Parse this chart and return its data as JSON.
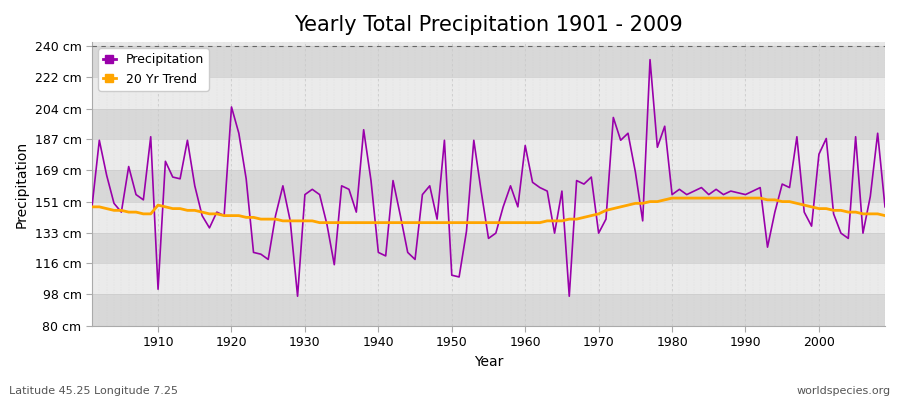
{
  "title": "Yearly Total Precipitation 1901 - 2009",
  "xlabel": "Year",
  "ylabel": "Precipitation",
  "subtitle": "Latitude 45.25 Longitude 7.25",
  "watermark": "worldspecies.org",
  "ylim": [
    80,
    242
  ],
  "yticks": [
    80,
    98,
    116,
    133,
    151,
    169,
    187,
    204,
    222,
    240
  ],
  "ytick_labels": [
    "80 cm",
    "98 cm",
    "116 cm",
    "133 cm",
    "151 cm",
    "169 cm",
    "187 cm",
    "204 cm",
    "222 cm",
    "240 cm"
  ],
  "years": [
    1901,
    1902,
    1903,
    1904,
    1905,
    1906,
    1907,
    1908,
    1909,
    1910,
    1911,
    1912,
    1913,
    1914,
    1915,
    1916,
    1917,
    1918,
    1919,
    1920,
    1921,
    1922,
    1923,
    1924,
    1925,
    1926,
    1927,
    1928,
    1929,
    1930,
    1931,
    1932,
    1933,
    1934,
    1935,
    1936,
    1937,
    1938,
    1939,
    1940,
    1941,
    1942,
    1943,
    1944,
    1945,
    1946,
    1947,
    1948,
    1949,
    1950,
    1951,
    1952,
    1953,
    1954,
    1955,
    1956,
    1957,
    1958,
    1959,
    1960,
    1961,
    1962,
    1963,
    1964,
    1965,
    1966,
    1967,
    1968,
    1969,
    1970,
    1971,
    1972,
    1973,
    1974,
    1975,
    1976,
    1977,
    1978,
    1979,
    1980,
    1981,
    1982,
    1983,
    1984,
    1985,
    1986,
    1987,
    1988,
    1989,
    1990,
    1991,
    1992,
    1993,
    1994,
    1995,
    1996,
    1997,
    1998,
    1999,
    2000,
    2001,
    2002,
    2003,
    2004,
    2005,
    2006,
    2007,
    2008,
    2009
  ],
  "precipitation": [
    148,
    186,
    166,
    150,
    145,
    171,
    155,
    152,
    188,
    101,
    174,
    165,
    164,
    186,
    160,
    143,
    136,
    145,
    143,
    205,
    190,
    164,
    122,
    121,
    118,
    143,
    160,
    140,
    97,
    155,
    158,
    155,
    138,
    115,
    160,
    158,
    145,
    192,
    163,
    122,
    120,
    163,
    143,
    122,
    118,
    155,
    160,
    141,
    186,
    109,
    108,
    134,
    186,
    157,
    130,
    133,
    148,
    160,
    148,
    183,
    162,
    159,
    157,
    133,
    157,
    97,
    163,
    161,
    165,
    133,
    141,
    199,
    186,
    190,
    168,
    140,
    232,
    182,
    194,
    155,
    158,
    155,
    157,
    159,
    155,
    158,
    155,
    157,
    156,
    155,
    157,
    159,
    125,
    145,
    161,
    159,
    188,
    145,
    137,
    178,
    187,
    144,
    133,
    130,
    188,
    133,
    154,
    190,
    148
  ],
  "trend": [
    148,
    148,
    147,
    146,
    146,
    145,
    145,
    144,
    144,
    149,
    148,
    147,
    147,
    146,
    146,
    145,
    144,
    144,
    143,
    143,
    143,
    142,
    142,
    141,
    141,
    141,
    140,
    140,
    140,
    140,
    140,
    139,
    139,
    139,
    139,
    139,
    139,
    139,
    139,
    139,
    139,
    139,
    139,
    139,
    139,
    139,
    139,
    139,
    139,
    139,
    139,
    139,
    139,
    139,
    139,
    139,
    139,
    139,
    139,
    139,
    139,
    139,
    140,
    140,
    140,
    141,
    141,
    142,
    143,
    144,
    146,
    147,
    148,
    149,
    150,
    150,
    151,
    151,
    152,
    153,
    153,
    153,
    153,
    153,
    153,
    153,
    153,
    153,
    153,
    153,
    153,
    153,
    152,
    152,
    151,
    151,
    150,
    149,
    148,
    147,
    147,
    146,
    146,
    145,
    145,
    144,
    144,
    144,
    143
  ],
  "precip_color": "#9900aa",
  "trend_color": "#ffa500",
  "fig_bg_color": "#ffffff",
  "plot_bg_color": "#e8e8e8",
  "band_light_color": "#ebebeb",
  "band_dark_color": "#d8d8d8",
  "grid_color": "#ffffff",
  "title_fontsize": 15,
  "label_fontsize": 10,
  "tick_fontsize": 9
}
